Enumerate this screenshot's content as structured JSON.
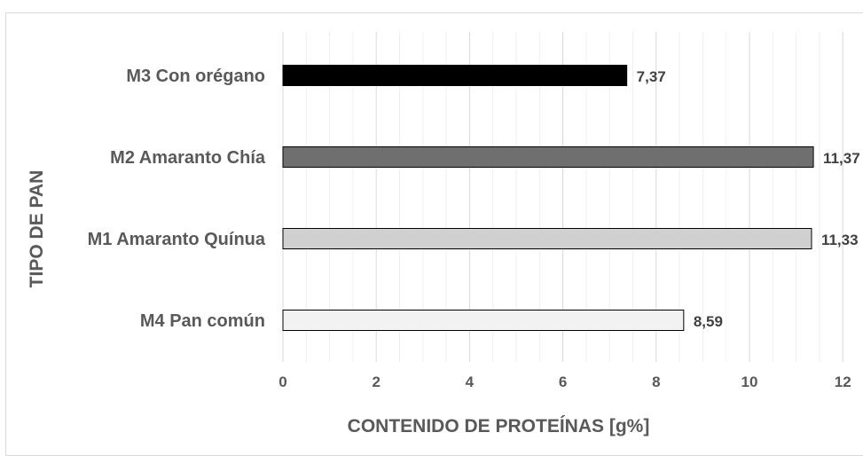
{
  "chart_data": {
    "type": "bar",
    "orientation": "horizontal",
    "categories": [
      "M3 Con orégano",
      "M2 Amaranto Chía",
      "M1 Amaranto Quínua",
      "M4 Pan común"
    ],
    "values": [
      7.37,
      11.37,
      11.33,
      8.59
    ],
    "value_labels": [
      "7,37",
      "11,37",
      "11,33",
      "8,59"
    ],
    "bar_colors": [
      "#000000",
      "#6f6f6f",
      "#d0d0d0",
      "#f2f2f2"
    ],
    "xlabel": "CONTENIDO DE PROTEÍNAS [g%]",
    "ylabel": "TIPO DE PAN",
    "xlim": [
      0,
      12
    ],
    "xticks": [
      "0",
      "2",
      "4",
      "6",
      "8",
      "10",
      "12"
    ],
    "grid": true
  }
}
